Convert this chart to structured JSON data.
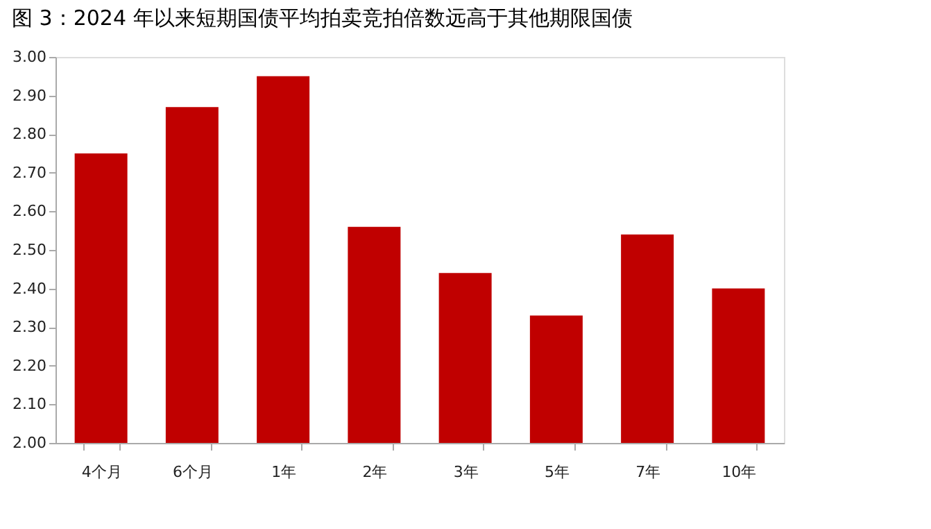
{
  "chart_data": {
    "type": "bar",
    "title": "图 3：2024 年以来短期国债平均拍卖竞拍倍数远高于其他期限国债",
    "categories": [
      "4个月",
      "6个月",
      "1年",
      "2年",
      "3年",
      "5年",
      "7年",
      "10年"
    ],
    "values": [
      2.75,
      2.87,
      2.95,
      2.56,
      2.44,
      2.33,
      2.54,
      2.4
    ],
    "color": "#c00000",
    "ylim": [
      2.0,
      3.0
    ],
    "yticks": [
      {
        "value": 2.0,
        "label": "2.00"
      },
      {
        "value": 2.1,
        "label": "2.10"
      },
      {
        "value": 2.2,
        "label": "2.20"
      },
      {
        "value": 2.3,
        "label": "2.30"
      },
      {
        "value": 2.4,
        "label": "2.40"
      },
      {
        "value": 2.5,
        "label": "2.50"
      },
      {
        "value": 2.6,
        "label": "2.60"
      },
      {
        "value": 2.7,
        "label": "2.70"
      },
      {
        "value": 2.8,
        "label": "2.80"
      },
      {
        "value": 2.9,
        "label": "2.90"
      },
      {
        "value": 3.0,
        "label": "3.00"
      }
    ],
    "grid": false
  }
}
